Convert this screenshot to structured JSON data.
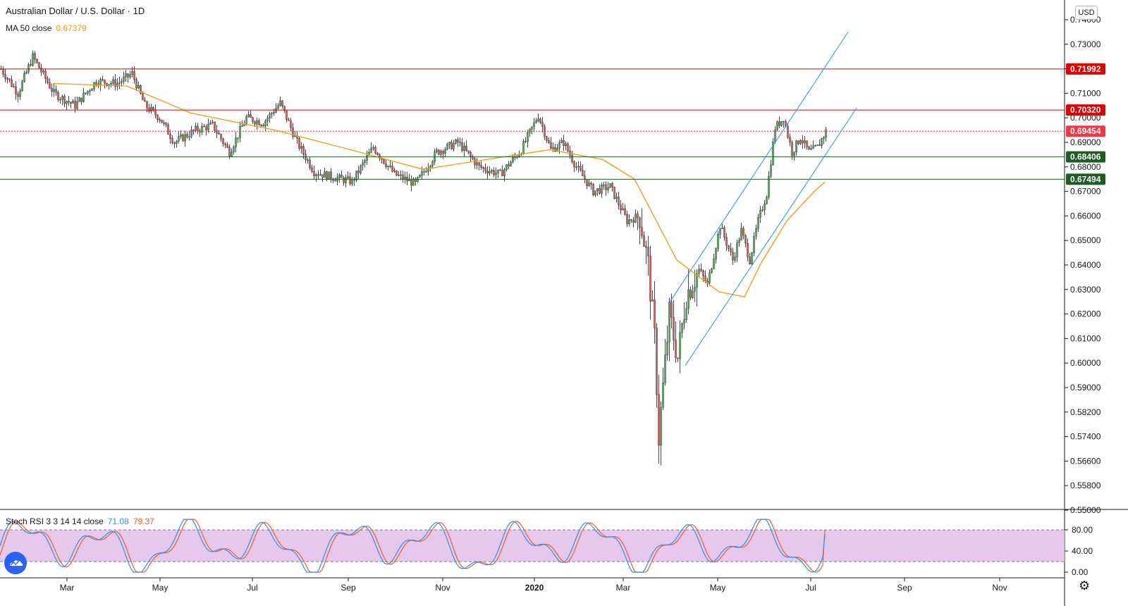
{
  "header": {
    "symbol_title": "Australian Dollar / U.S. Dollar · 1D",
    "ma_label": "MA 50 close",
    "ma_value": "0.67379",
    "currency": "USD"
  },
  "stoch": {
    "label": "Stoch RSI 3 3 14 14 close",
    "k_value": "71.08",
    "d_value": "79.37",
    "ticks": [
      "80.00",
      "40.00",
      "0.00"
    ]
  },
  "colors": {
    "up": "#4caf50",
    "down": "#ef5350",
    "wick": "#131722",
    "ma": "#ff9800",
    "channel": "#2196f3",
    "resistance": "#e00000",
    "support": "#1b5e20",
    "current_price": "#f23645",
    "stoch_k": "#2196f3",
    "stoch_d": "#ff5722",
    "stoch_band": "#e1bee7"
  },
  "icons": {
    "logo": "tradingview-cloud-icon",
    "settings": "gear-icon"
  },
  "chart_data": {
    "type": "candlestick",
    "title": "Australian Dollar / U.S. Dollar · 1D",
    "y_axis_ticks": [
      "0.74000",
      "0.73000",
      "0.72000",
      "0.71000",
      "0.70000",
      "0.69000",
      "0.68000",
      "0.67000",
      "0.66000",
      "0.65000",
      "0.64000",
      "0.63000",
      "0.62000",
      "0.61000",
      "0.60000",
      "0.59000",
      "0.58200",
      "0.57400",
      "0.56600",
      "0.55800",
      "0.55000"
    ],
    "x_axis_ticks": [
      "Mar",
      "May",
      "Jul",
      "Sep",
      "Nov",
      "2020",
      "Mar",
      "May",
      "Jul",
      "Sep",
      "Nov"
    ],
    "price_tags": [
      {
        "label": "0.71992",
        "price": 0.71992,
        "kind": "resistance"
      },
      {
        "label": "0.70320",
        "price": 0.7032,
        "kind": "resistance"
      },
      {
        "label": "0.69454",
        "price": 0.69454,
        "kind": "current"
      },
      {
        "label": "0.68406",
        "price": 0.68406,
        "kind": "support"
      },
      {
        "label": "0.67494",
        "price": 0.67494,
        "kind": "support"
      }
    ],
    "price_path": [
      {
        "t": 0,
        "p": 0.72
      },
      {
        "t": 8,
        "p": 0.71
      },
      {
        "t": 15,
        "p": 0.725
      },
      {
        "t": 25,
        "p": 0.71
      },
      {
        "t": 35,
        "p": 0.705
      },
      {
        "t": 45,
        "p": 0.715
      },
      {
        "t": 55,
        "p": 0.714
      },
      {
        "t": 62,
        "p": 0.718
      },
      {
        "t": 68,
        "p": 0.705
      },
      {
        "t": 75,
        "p": 0.7
      },
      {
        "t": 82,
        "p": 0.69
      },
      {
        "t": 92,
        "p": 0.695
      },
      {
        "t": 100,
        "p": 0.697
      },
      {
        "t": 108,
        "p": 0.686
      },
      {
        "t": 116,
        "p": 0.7
      },
      {
        "t": 124,
        "p": 0.698
      },
      {
        "t": 132,
        "p": 0.706
      },
      {
        "t": 140,
        "p": 0.69
      },
      {
        "t": 148,
        "p": 0.678
      },
      {
        "t": 156,
        "p": 0.676
      },
      {
        "t": 166,
        "p": 0.674
      },
      {
        "t": 176,
        "p": 0.688
      },
      {
        "t": 186,
        "p": 0.677
      },
      {
        "t": 196,
        "p": 0.673
      },
      {
        "t": 206,
        "p": 0.686
      },
      {
        "t": 216,
        "p": 0.69
      },
      {
        "t": 226,
        "p": 0.68
      },
      {
        "t": 236,
        "p": 0.677
      },
      {
        "t": 246,
        "p": 0.687
      },
      {
        "t": 254,
        "p": 0.701
      },
      {
        "t": 260,
        "p": 0.687
      },
      {
        "t": 266,
        "p": 0.69
      },
      {
        "t": 272,
        "p": 0.68
      },
      {
        "t": 280,
        "p": 0.67
      },
      {
        "t": 288,
        "p": 0.672
      },
      {
        "t": 296,
        "p": 0.658
      },
      {
        "t": 302,
        "p": 0.66
      },
      {
        "t": 306,
        "p": 0.64
      },
      {
        "t": 309,
        "p": 0.61
      },
      {
        "t": 311,
        "p": 0.574
      },
      {
        "t": 313,
        "p": 0.59
      },
      {
        "t": 316,
        "p": 0.62
      },
      {
        "t": 320,
        "p": 0.602
      },
      {
        "t": 324,
        "p": 0.628
      },
      {
        "t": 330,
        "p": 0.638
      },
      {
        "t": 334,
        "p": 0.632
      },
      {
        "t": 340,
        "p": 0.656
      },
      {
        "t": 346,
        "p": 0.642
      },
      {
        "t": 350,
        "p": 0.654
      },
      {
        "t": 354,
        "p": 0.642
      },
      {
        "t": 358,
        "p": 0.658
      },
      {
        "t": 362,
        "p": 0.669
      },
      {
        "t": 366,
        "p": 0.696
      },
      {
        "t": 370,
        "p": 0.7
      },
      {
        "t": 374,
        "p": 0.686
      },
      {
        "t": 378,
        "p": 0.692
      },
      {
        "t": 382,
        "p": 0.686
      },
      {
        "t": 386,
        "p": 0.688
      },
      {
        "t": 390,
        "p": 0.6945
      }
    ],
    "ma50_path": [
      {
        "t": 25,
        "p": 0.714
      },
      {
        "t": 60,
        "p": 0.713
      },
      {
        "t": 90,
        "p": 0.702
      },
      {
        "t": 130,
        "p": 0.695
      },
      {
        "t": 170,
        "p": 0.686
      },
      {
        "t": 200,
        "p": 0.679
      },
      {
        "t": 230,
        "p": 0.683
      },
      {
        "t": 260,
        "p": 0.687
      },
      {
        "t": 285,
        "p": 0.683
      },
      {
        "t": 300,
        "p": 0.675
      },
      {
        "t": 320,
        "p": 0.642
      },
      {
        "t": 340,
        "p": 0.629
      },
      {
        "t": 352,
        "p": 0.627
      },
      {
        "t": 360,
        "p": 0.641
      },
      {
        "t": 372,
        "p": 0.658
      },
      {
        "t": 385,
        "p": 0.67
      },
      {
        "t": 390,
        "p": 0.6738
      }
    ],
    "channel": {
      "upper": [
        {
          "t": 316,
          "p": 0.624
        },
        {
          "t": 401,
          "p": 0.735
        }
      ],
      "lower": [
        {
          "t": 324,
          "p": 0.599
        },
        {
          "t": 405,
          "p": 0.704
        }
      ]
    },
    "stoch_rsi": {
      "k_last": 71.08,
      "d_last": 79.37,
      "upper_band": 80,
      "lower_band": 20,
      "range": [
        0,
        100
      ]
    }
  }
}
